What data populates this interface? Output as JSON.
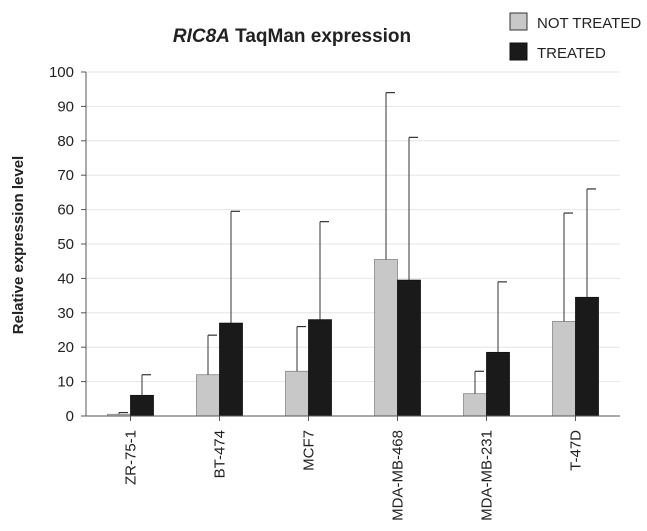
{
  "chart_data": {
    "type": "bar",
    "title_italic": "RIC8A",
    "title_rest": " TaqMan expression",
    "ylabel": "Relative expression level",
    "xlabel": "",
    "ylim": [
      0,
      100
    ],
    "yticks": [
      0,
      10,
      20,
      30,
      40,
      50,
      60,
      70,
      80,
      90,
      100
    ],
    "grid": true,
    "legend_position": "top-right",
    "categories": [
      "ZR-75-1",
      "BT-474",
      "MCF7",
      "MDA-MB-468",
      "MDA-MB-231",
      "T-47D"
    ],
    "series": [
      {
        "name": "NOT TREATED",
        "color": "#c8c8c8",
        "values": [
          0.5,
          12,
          13,
          45.5,
          6.5,
          27.5
        ],
        "error": [
          0.5,
          11.5,
          13,
          48.5,
          6.5,
          31.5
        ]
      },
      {
        "name": "TREATED",
        "color": "#1a1a1a",
        "values": [
          6,
          27,
          28,
          39.5,
          18.5,
          34.5
        ],
        "error": [
          6,
          32.5,
          28.5,
          41.5,
          20.5,
          31.5
        ]
      }
    ]
  }
}
